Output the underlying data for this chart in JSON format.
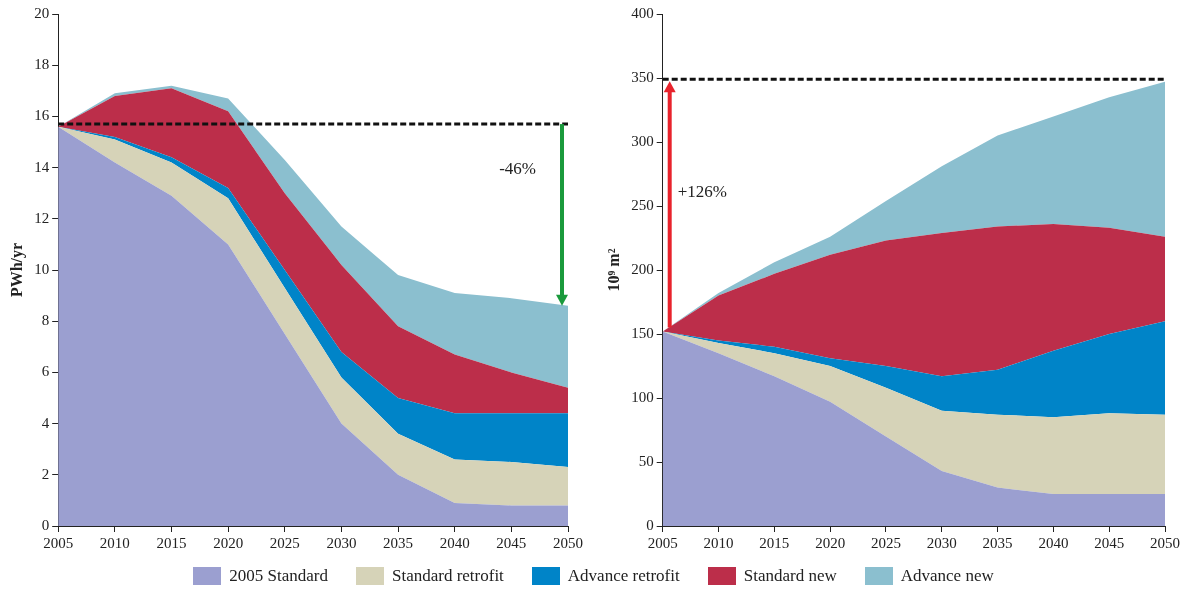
{
  "chart_data": [
    {
      "type": "area",
      "stacked": true,
      "ylabel": "PWh/yr",
      "x": [
        2005,
        2010,
        2015,
        2020,
        2025,
        2030,
        2035,
        2040,
        2045,
        2050
      ],
      "xlim": [
        2005,
        2050
      ],
      "xticks": [
        2005,
        2010,
        2015,
        2020,
        2025,
        2030,
        2035,
        2040,
        2045,
        2050
      ],
      "ylim": [
        0,
        20
      ],
      "yticks": [
        0,
        2,
        4,
        6,
        8,
        10,
        12,
        14,
        16,
        18,
        20
      ],
      "grid": false,
      "marker": "none",
      "legend": "bottom",
      "series": [
        {
          "name": "2005 Standard",
          "color": "#9b9fd0",
          "values": [
            15.6,
            14.2,
            12.9,
            11.0,
            7.5,
            4.0,
            2.0,
            0.9,
            0.8,
            0.8
          ]
        },
        {
          "name": "Standard retrofit",
          "color": "#d6d3b8",
          "values": [
            0,
            0.9,
            1.3,
            1.8,
            1.8,
            1.8,
            1.6,
            1.7,
            1.7,
            1.5
          ]
        },
        {
          "name": "Advance retrofit",
          "color": "#0084c8",
          "values": [
            0,
            0.1,
            0.2,
            0.4,
            0.7,
            1.0,
            1.4,
            1.8,
            1.9,
            2.1
          ]
        },
        {
          "name": "Standard new",
          "color": "#bc2e4a",
          "values": [
            0,
            1.6,
            2.7,
            3.0,
            3.0,
            3.4,
            2.8,
            2.3,
            1.6,
            1.0
          ]
        },
        {
          "name": "Advance new",
          "color": "#8bbfcf",
          "values": [
            0,
            0.1,
            0.1,
            0.5,
            1.3,
            1.5,
            2.0,
            2.4,
            2.9,
            3.2
          ]
        }
      ],
      "ref_lines": [
        {
          "axis": "y",
          "value": 15.7,
          "color": "#111111",
          "line_style": "dashed"
        }
      ],
      "annotations": [
        "-46%"
      ]
    },
    {
      "type": "area",
      "stacked": true,
      "ylabel": "10⁹ m²",
      "x": [
        2005,
        2010,
        2015,
        2020,
        2025,
        2030,
        2035,
        2040,
        2045,
        2050
      ],
      "xlim": [
        2005,
        2050
      ],
      "xticks": [
        2005,
        2010,
        2015,
        2020,
        2025,
        2030,
        2035,
        2040,
        2045,
        2050
      ],
      "ylim": [
        0,
        400
      ],
      "yticks": [
        0,
        50,
        100,
        150,
        200,
        250,
        300,
        350,
        400
      ],
      "grid": false,
      "marker": "none",
      "series": [
        {
          "color": "#9b9fd0",
          "values": [
            152,
            135,
            117,
            97,
            70,
            43,
            30,
            25,
            25,
            25
          ]
        },
        {
          "color": "#d6d3b8",
          "values": [
            0,
            8,
            18,
            28,
            38,
            47,
            57,
            60,
            63,
            62
          ]
        },
        {
          "color": "#0084c8",
          "values": [
            0,
            2,
            5,
            6,
            17,
            27,
            35,
            52,
            62,
            73
          ]
        },
        {
          "color": "#bc2e4a",
          "values": [
            0,
            35,
            57,
            81,
            98,
            112,
            112,
            99,
            83,
            66
          ]
        },
        {
          "color": "#8bbfcf",
          "values": [
            0,
            2,
            9,
            14,
            31,
            52,
            71,
            84,
            102,
            121
          ]
        }
      ],
      "ref_lines": [
        {
          "axis": "y",
          "value": 349,
          "color": "#111111",
          "line_style": "dashed"
        }
      ],
      "annotations": [
        "+126%"
      ]
    }
  ]
}
